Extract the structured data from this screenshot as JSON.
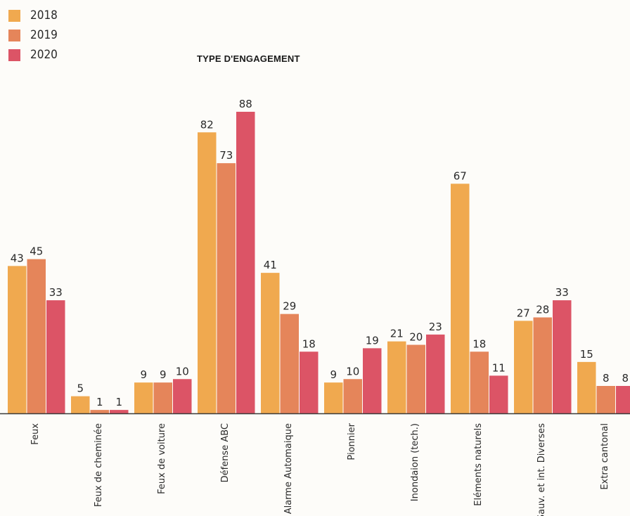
{
  "chart_data": {
    "type": "bar",
    "title": "TYPE D'ENGAGEMENT",
    "categories": [
      "Feux",
      "Feux de cheminée",
      "Feux de voiture",
      "Défense ABC",
      "Alarme Automaique",
      "Pionnier",
      "Inondaion (tech.)",
      "Eléments naturels",
      "Sauv. et int. Diverses",
      "Extra cantonal"
    ],
    "series": [
      {
        "name": "2018",
        "color": "#f0a94f",
        "values": [
          43,
          5,
          9,
          82,
          41,
          9,
          21,
          67,
          27,
          15
        ]
      },
      {
        "name": "2019",
        "color": "#e5855a",
        "values": [
          45,
          1,
          9,
          73,
          29,
          10,
          20,
          18,
          28,
          8
        ]
      },
      {
        "name": "2020",
        "color": "#dc5466",
        "values": [
          33,
          1,
          10,
          88,
          18,
          19,
          23,
          11,
          33,
          8
        ]
      }
    ],
    "ylim": [
      0,
      88
    ],
    "grid": false,
    "legend_position": "top-left"
  }
}
